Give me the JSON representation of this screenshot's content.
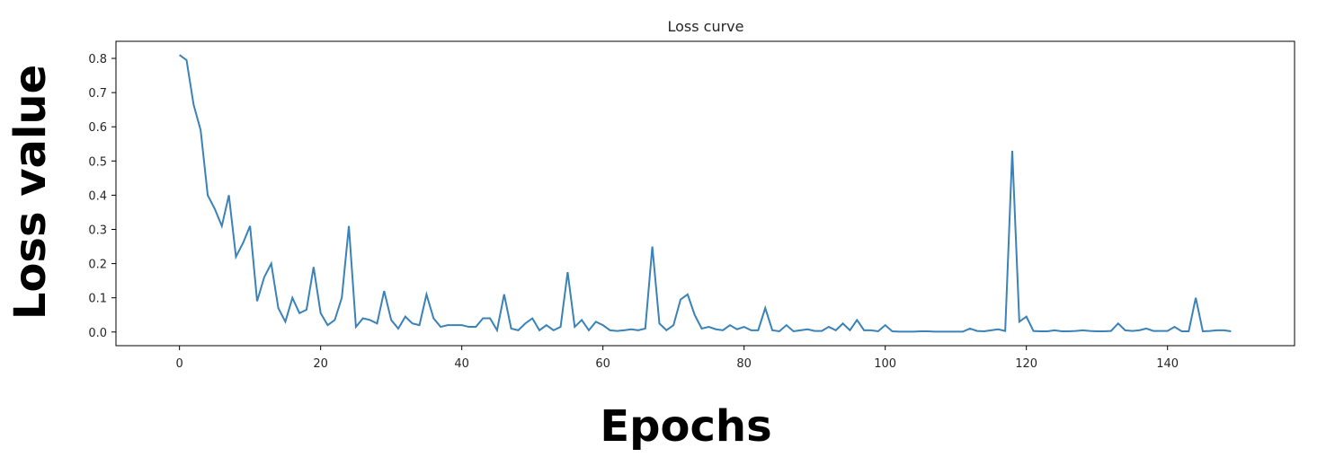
{
  "chart_data": {
    "type": "line",
    "title": "Loss curve",
    "xlabel": "Epochs",
    "ylabel": "Loss value",
    "xlim": [
      -9,
      158
    ],
    "ylim": [
      -0.04,
      0.85
    ],
    "xticks": [
      0,
      20,
      40,
      60,
      80,
      100,
      120,
      140
    ],
    "yticks": [
      0.0,
      0.1,
      0.2,
      0.3,
      0.4,
      0.5,
      0.6,
      0.7,
      0.8
    ],
    "ytick_labels": [
      "0.0",
      "0.1",
      "0.2",
      "0.3",
      "0.4",
      "0.5",
      "0.6",
      "0.7",
      "0.8"
    ],
    "grid": false,
    "line_color": "#3a82b8",
    "series": [
      {
        "values": [
          0.81,
          0.795,
          0.665,
          0.59,
          0.4,
          0.36,
          0.31,
          0.4,
          0.22,
          0.26,
          0.31,
          0.09,
          0.16,
          0.2,
          0.07,
          0.03,
          0.1,
          0.055,
          0.065,
          0.19,
          0.055,
          0.02,
          0.035,
          0.1,
          0.31,
          0.015,
          0.04,
          0.035,
          0.025,
          0.12,
          0.035,
          0.01,
          0.045,
          0.025,
          0.02,
          0.11,
          0.04,
          0.015,
          0.02,
          0.02,
          0.02,
          0.015,
          0.015,
          0.04,
          0.04,
          0.005,
          0.11,
          0.01,
          0.005,
          0.025,
          0.04,
          0.005,
          0.02,
          0.005,
          0.015,
          0.175,
          0.015,
          0.035,
          0.005,
          0.03,
          0.02,
          0.005,
          0.003,
          0.005,
          0.008,
          0.005,
          0.01,
          0.25,
          0.025,
          0.005,
          0.02,
          0.095,
          0.11,
          0.05,
          0.01,
          0.015,
          0.008,
          0.005,
          0.02,
          0.008,
          0.015,
          0.005,
          0.005,
          0.07,
          0.005,
          0.002,
          0.02,
          0.002,
          0.005,
          0.008,
          0.003,
          0.003,
          0.015,
          0.005,
          0.025,
          0.005,
          0.035,
          0.005,
          0.005,
          0.002,
          0.02,
          0.002,
          0.001,
          0.001,
          0.001,
          0.002,
          0.002,
          0.001,
          0.001,
          0.001,
          0.001,
          0.001,
          0.01,
          0.003,
          0.002,
          0.005,
          0.008,
          0.003,
          0.53,
          0.03,
          0.045,
          0.003,
          0.002,
          0.002,
          0.005,
          0.002,
          0.002,
          0.003,
          0.005,
          0.003,
          0.002,
          0.002,
          0.003,
          0.025,
          0.005,
          0.003,
          0.005,
          0.01,
          0.003,
          0.003,
          0.003,
          0.015,
          0.002,
          0.002,
          0.1,
          0.002,
          0.003,
          0.005,
          0.005,
          0.002
        ]
      }
    ]
  }
}
